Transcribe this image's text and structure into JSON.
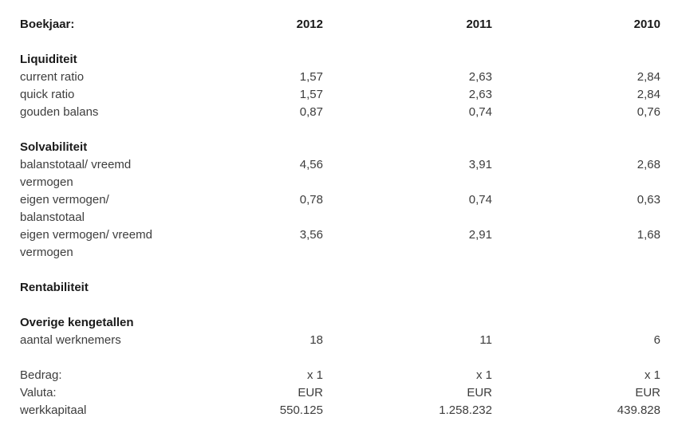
{
  "colors": {
    "heading_text": "#1a1a1a",
    "body_text": "#3d3d3d",
    "background": "#ffffff"
  },
  "header": {
    "label": "Boekjaar:",
    "years": [
      "2012",
      "2011",
      "2010"
    ]
  },
  "rows": [
    {
      "type": "section",
      "label": "Liquiditeit"
    },
    {
      "type": "data",
      "label": "current ratio",
      "values": [
        "1,57",
        "2,63",
        "2,84"
      ]
    },
    {
      "type": "data",
      "label": "quick ratio",
      "values": [
        "1,57",
        "2,63",
        "2,84"
      ]
    },
    {
      "type": "data",
      "label": "gouden balans",
      "values": [
        "0,87",
        "0,74",
        "0,76"
      ]
    },
    {
      "type": "section",
      "label": "Solvabiliteit"
    },
    {
      "type": "data",
      "label": "balanstotaal/ vreemd\nvermogen",
      "values": [
        "4,56",
        "3,91",
        "2,68"
      ]
    },
    {
      "type": "data",
      "label": "eigen vermogen/\nbalanstotaal",
      "values": [
        "0,78",
        "0,74",
        "0,63"
      ]
    },
    {
      "type": "data",
      "label": "eigen vermogen/ vreemd\nvermogen",
      "values": [
        "3,56",
        "2,91",
        "1,68"
      ]
    },
    {
      "type": "section",
      "label": "Rentabiliteit"
    },
    {
      "type": "section",
      "label": "Overige kengetallen"
    },
    {
      "type": "data",
      "label": "aantal werknemers",
      "values": [
        "18",
        "11",
        "6"
      ]
    },
    {
      "type": "data",
      "label": "Bedrag:",
      "values": [
        "x 1",
        "x 1",
        "x 1"
      ]
    },
    {
      "type": "data",
      "label": "Valuta:",
      "values": [
        "EUR",
        "EUR",
        "EUR"
      ]
    },
    {
      "type": "data",
      "label": "werkkapitaal",
      "values": [
        "550.125",
        "1.258.232",
        "439.828"
      ]
    }
  ]
}
